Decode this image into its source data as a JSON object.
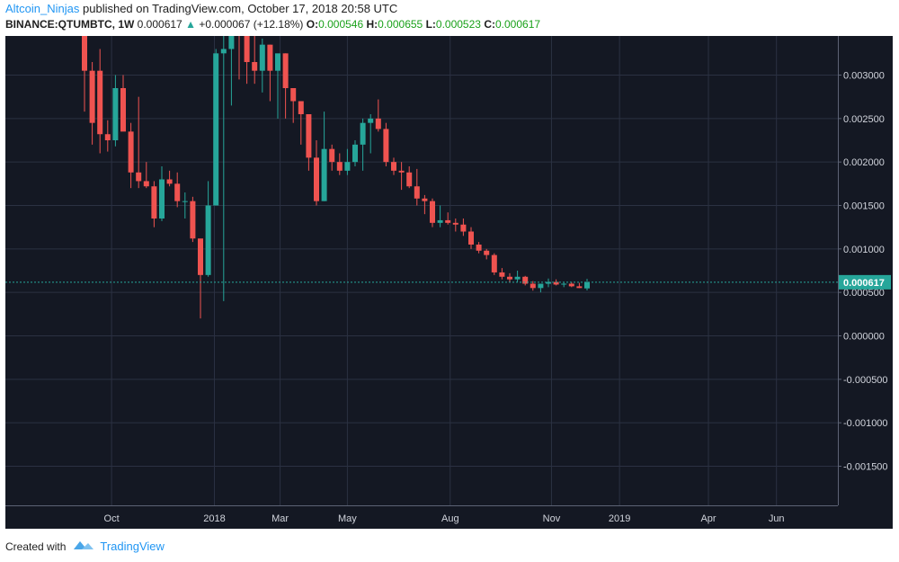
{
  "header": {
    "author": "Altcoin_Ninjas",
    "published_text": "published on TradingView.com, October 17, 2018 20:58 UTC",
    "symbol": "BINANCE:QTUMBTC, 1W",
    "last_price": "0.000617",
    "change": "+0.000067 (+12.18%)",
    "o_label": "O:",
    "o_value": "0.000546",
    "h_label": "H:",
    "h_value": "0.000655",
    "l_label": "L:",
    "l_value": "0.000523",
    "c_label": "C:",
    "c_value": "0.000617"
  },
  "footer": {
    "created_with": "Created with",
    "brand": "TradingView"
  },
  "colors": {
    "background": "#141823",
    "grid": "#2b3142",
    "up": "#26a69a",
    "down": "#ef5350",
    "price_line": "#26a69a",
    "axis_text": "#d1d4dc"
  },
  "chart_data": {
    "type": "candlestick",
    "symbol": "BINANCE:QTUMBTC",
    "interval": "1W",
    "y_range": [
      -0.00195,
      0.00345
    ],
    "y_ticks": [
      "0.003000",
      "0.002500",
      "0.002000",
      "0.001500",
      "0.001000",
      "0.000500",
      "0.000000",
      "-0.000500",
      "-0.001000",
      "-0.001500"
    ],
    "x_ticks": [
      {
        "label": "Oct",
        "index": 3.5
      },
      {
        "label": "2018",
        "index": 16.8
      },
      {
        "label": "Mar",
        "index": 25.3
      },
      {
        "label": "May",
        "index": 34.0
      },
      {
        "label": "Aug",
        "index": 47.3
      },
      {
        "label": "Nov",
        "index": 60.4
      },
      {
        "label": "2019",
        "index": 69.2
      },
      {
        "label": "Apr",
        "index": 80.7
      },
      {
        "label": "Jun",
        "index": 89.5
      }
    ],
    "last_price_label": "0.000617",
    "last_price": 0.000617,
    "candles": [
      {
        "o": 0.00375,
        "h": 0.00375,
        "l": 0.00258,
        "c": 0.00305
      },
      {
        "o": 0.00305,
        "h": 0.00315,
        "l": 0.0022,
        "c": 0.00245
      },
      {
        "o": 0.00305,
        "h": 0.0033,
        "l": 0.0021,
        "c": 0.00232
      },
      {
        "o": 0.00232,
        "h": 0.00248,
        "l": 0.00212,
        "c": 0.00225
      },
      {
        "o": 0.00225,
        "h": 0.003,
        "l": 0.00218,
        "c": 0.00285
      },
      {
        "o": 0.00285,
        "h": 0.003,
        "l": 0.0024,
        "c": 0.00235
      },
      {
        "o": 0.00235,
        "h": 0.00245,
        "l": 0.0017,
        "c": 0.00188
      },
      {
        "o": 0.00188,
        "h": 0.00275,
        "l": 0.0017,
        "c": 0.00178
      },
      {
        "o": 0.00178,
        "h": 0.002,
        "l": 0.0017,
        "c": 0.00172
      },
      {
        "o": 0.00172,
        "h": 0.00178,
        "l": 0.00125,
        "c": 0.00135
      },
      {
        "o": 0.00135,
        "h": 0.00195,
        "l": 0.00132,
        "c": 0.0018
      },
      {
        "o": 0.0018,
        "h": 0.0019,
        "l": 0.00172,
        "c": 0.00175
      },
      {
        "o": 0.00175,
        "h": 0.00188,
        "l": 0.00148,
        "c": 0.00155
      },
      {
        "o": 0.00155,
        "h": 0.00165,
        "l": 0.00135,
        "c": 0.00155
      },
      {
        "o": 0.00155,
        "h": 0.0016,
        "l": 0.00108,
        "c": 0.00112
      },
      {
        "o": 0.00112,
        "h": 0.00108,
        "l": 0.0002,
        "c": 0.0007
      },
      {
        "o": 0.0007,
        "h": 0.00178,
        "l": 0.00068,
        "c": 0.0015
      },
      {
        "o": 0.0015,
        "h": 0.0033,
        "l": 0.0015,
        "c": 0.00325
      },
      {
        "o": 0.00325,
        "h": 0.0041,
        "l": 0.0004,
        "c": 0.0033
      },
      {
        "o": 0.0033,
        "h": 0.0041,
        "l": 0.00265,
        "c": 0.0037
      },
      {
        "o": 0.0037,
        "h": 0.0041,
        "l": 0.00295,
        "c": 0.0035
      },
      {
        "o": 0.0035,
        "h": 0.0035,
        "l": 0.0029,
        "c": 0.00315
      },
      {
        "o": 0.00315,
        "h": 0.0035,
        "l": 0.0029,
        "c": 0.00305
      },
      {
        "o": 0.00305,
        "h": 0.00342,
        "l": 0.0028,
        "c": 0.00335
      },
      {
        "o": 0.00335,
        "h": 0.00335,
        "l": 0.0027,
        "c": 0.00305
      },
      {
        "o": 0.00305,
        "h": 0.0032,
        "l": 0.0025,
        "c": 0.00325
      },
      {
        "o": 0.00325,
        "h": 0.00325,
        "l": 0.0025,
        "c": 0.00285
      },
      {
        "o": 0.00285,
        "h": 0.00285,
        "l": 0.00245,
        "c": 0.0027
      },
      {
        "o": 0.0027,
        "h": 0.0027,
        "l": 0.0022,
        "c": 0.00255
      },
      {
        "o": 0.00255,
        "h": 0.00255,
        "l": 0.0019,
        "c": 0.00205
      },
      {
        "o": 0.00205,
        "h": 0.00225,
        "l": 0.0015,
        "c": 0.00155
      },
      {
        "o": 0.00155,
        "h": 0.00258,
        "l": 0.00155,
        "c": 0.00215
      },
      {
        "o": 0.00215,
        "h": 0.0022,
        "l": 0.0019,
        "c": 0.002
      },
      {
        "o": 0.002,
        "h": 0.0021,
        "l": 0.00185,
        "c": 0.0019
      },
      {
        "o": 0.0019,
        "h": 0.00215,
        "l": 0.00185,
        "c": 0.002
      },
      {
        "o": 0.002,
        "h": 0.00225,
        "l": 0.00195,
        "c": 0.0022
      },
      {
        "o": 0.0022,
        "h": 0.0025,
        "l": 0.0019,
        "c": 0.00245
      },
      {
        "o": 0.00245,
        "h": 0.00255,
        "l": 0.0021,
        "c": 0.0025
      },
      {
        "o": 0.0025,
        "h": 0.00272,
        "l": 0.00235,
        "c": 0.00238
      },
      {
        "o": 0.00238,
        "h": 0.00245,
        "l": 0.00195,
        "c": 0.002
      },
      {
        "o": 0.002,
        "h": 0.00205,
        "l": 0.00185,
        "c": 0.0019
      },
      {
        "o": 0.0019,
        "h": 0.002,
        "l": 0.00168,
        "c": 0.00188
      },
      {
        "o": 0.00188,
        "h": 0.00195,
        "l": 0.0017,
        "c": 0.00172
      },
      {
        "o": 0.00172,
        "h": 0.00192,
        "l": 0.0015,
        "c": 0.00158
      },
      {
        "o": 0.00158,
        "h": 0.00162,
        "l": 0.0014,
        "c": 0.00155
      },
      {
        "o": 0.00155,
        "h": 0.00158,
        "l": 0.00125,
        "c": 0.0013
      },
      {
        "o": 0.0013,
        "h": 0.0015,
        "l": 0.00125,
        "c": 0.00133
      },
      {
        "o": 0.00133,
        "h": 0.00142,
        "l": 0.00128,
        "c": 0.0013
      },
      {
        "o": 0.0013,
        "h": 0.00135,
        "l": 0.0012,
        "c": 0.00128
      },
      {
        "o": 0.00128,
        "h": 0.00135,
        "l": 0.00115,
        "c": 0.0012
      },
      {
        "o": 0.0012,
        "h": 0.00125,
        "l": 0.001,
        "c": 0.00105
      },
      {
        "o": 0.00105,
        "h": 0.00108,
        "l": 0.00095,
        "c": 0.00098
      },
      {
        "o": 0.00098,
        "h": 0.001,
        "l": 0.00088,
        "c": 0.00093
      },
      {
        "o": 0.00093,
        "h": 0.00095,
        "l": 0.0007,
        "c": 0.00073
      },
      {
        "o": 0.00073,
        "h": 0.00078,
        "l": 0.00065,
        "c": 0.00068
      },
      {
        "o": 0.00068,
        "h": 0.00072,
        "l": 0.00062,
        "c": 0.00065
      },
      {
        "o": 0.00065,
        "h": 0.00075,
        "l": 0.00062,
        "c": 0.00068
      },
      {
        "o": 0.00068,
        "h": 0.00069,
        "l": 0.00058,
        "c": 0.0006
      },
      {
        "o": 0.0006,
        "h": 0.00063,
        "l": 0.00052,
        "c": 0.00055
      },
      {
        "o": 0.00055,
        "h": 0.0006,
        "l": 0.0005,
        "c": 0.0006
      },
      {
        "o": 0.0006,
        "h": 0.00066,
        "l": 0.00056,
        "c": 0.00062
      },
      {
        "o": 0.00062,
        "h": 0.00065,
        "l": 0.00058,
        "c": 0.00059
      },
      {
        "o": 0.00059,
        "h": 0.00061,
        "l": 0.00056,
        "c": 0.0006
      },
      {
        "o": 0.0006,
        "h": 0.00062,
        "l": 0.00056,
        "c": 0.00057
      },
      {
        "o": 0.00057,
        "h": 0.00061,
        "l": 0.00055,
        "c": 0.00055
      },
      {
        "o": 0.000546,
        "h": 0.000655,
        "l": 0.000523,
        "c": 0.000617
      }
    ]
  }
}
